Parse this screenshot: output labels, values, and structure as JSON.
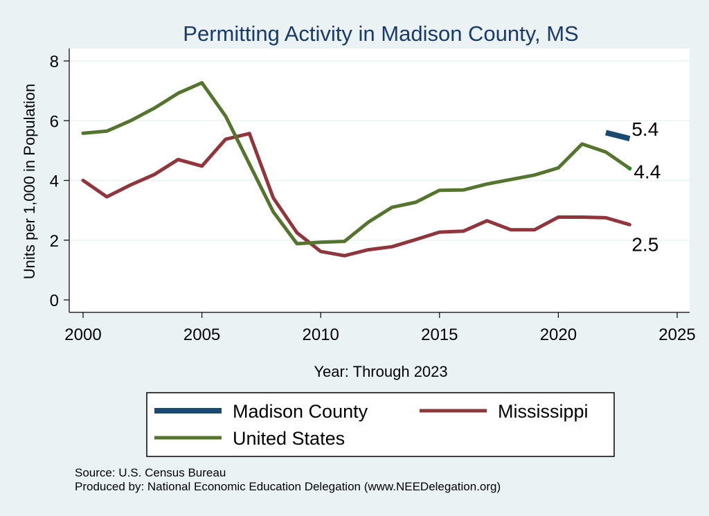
{
  "chart_data": {
    "type": "line",
    "title": "Permitting Activity in Madison County, MS",
    "xlabel": "Year: Through 2023",
    "ylabel": "Units per 1,000 in Population",
    "xlim": [
      2000,
      2025
    ],
    "ylim": [
      0,
      8
    ],
    "x_ticks": [
      2000,
      2005,
      2010,
      2015,
      2020,
      2025
    ],
    "y_ticks": [
      0,
      2,
      4,
      6,
      8
    ],
    "grid": true,
    "legend_position": "bottom",
    "series": [
      {
        "name": "Madison County",
        "color": "#1a4a72",
        "x": [
          2022,
          2023
        ],
        "values": [
          5.6,
          5.4
        ],
        "end_label": "5.4"
      },
      {
        "name": "Mississippi",
        "color": "#90353b",
        "x": [
          2000,
          2001,
          2002,
          2003,
          2004,
          2005,
          2006,
          2007,
          2008,
          2009,
          2010,
          2011,
          2012,
          2013,
          2014,
          2015,
          2016,
          2017,
          2018,
          2019,
          2020,
          2021,
          2022,
          2023
        ],
        "values": [
          4.0,
          3.45,
          3.85,
          4.2,
          4.7,
          4.48,
          5.38,
          5.57,
          3.42,
          2.25,
          1.62,
          1.48,
          1.68,
          1.78,
          2.02,
          2.27,
          2.3,
          2.65,
          2.35,
          2.35,
          2.77,
          2.77,
          2.75,
          2.52
        ],
        "end_label": "2.5"
      },
      {
        "name": "United States",
        "color": "#55752f",
        "x": [
          2000,
          2001,
          2002,
          2003,
          2004,
          2005,
          2006,
          2007,
          2008,
          2009,
          2010,
          2011,
          2012,
          2013,
          2014,
          2015,
          2016,
          2017,
          2018,
          2019,
          2020,
          2021,
          2022,
          2023
        ],
        "values": [
          5.58,
          5.65,
          6.0,
          6.42,
          6.92,
          7.27,
          6.15,
          4.55,
          2.95,
          1.88,
          1.93,
          1.96,
          2.6,
          3.1,
          3.27,
          3.67,
          3.68,
          3.88,
          4.03,
          4.18,
          4.42,
          5.22,
          4.95,
          4.4
        ],
        "end_label": "4.4"
      }
    ]
  },
  "footer": {
    "source": "Source: U.S. Census Bureau",
    "produced_by": "Produced by: National Economic Education Delegation (www.NEEDelegation.org)"
  }
}
